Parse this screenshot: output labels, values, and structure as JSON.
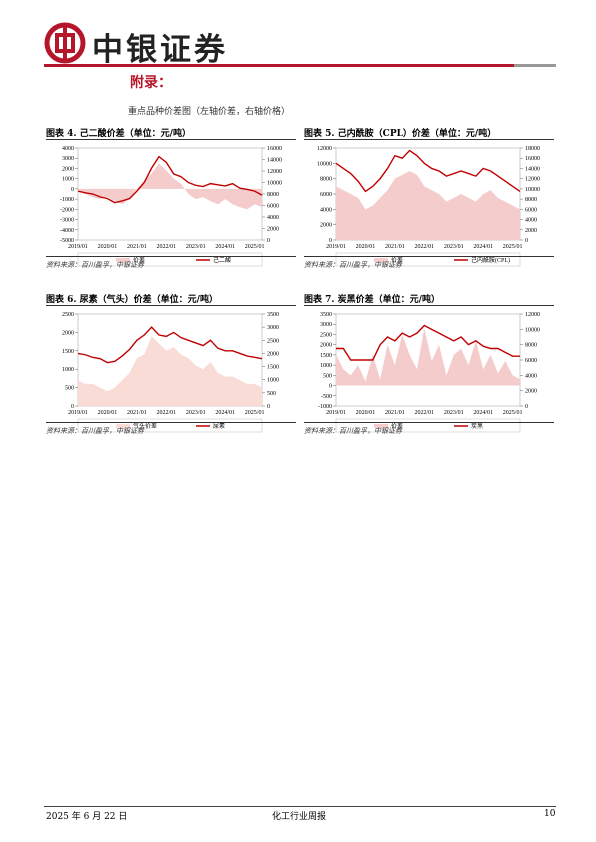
{
  "header": {
    "brand": "中银证券"
  },
  "section_title": "附录：",
  "subtitle": "重点品种价差图（左轴价差，右轴价格）",
  "chart_data": [
    {
      "type": "area-line",
      "title": "图表 4. 己二酸价差（单位：元/吨）",
      "source": "资料来源：百川盈孚，中银证券",
      "categories": [
        "2019/01",
        null,
        null,
        null,
        "2020/01",
        null,
        null,
        null,
        "2021/01",
        null,
        null,
        null,
        "2022/01",
        null,
        null,
        null,
        "2023/01",
        null,
        null,
        null,
        "2024/01",
        null,
        null,
        null,
        "2025/01",
        null
      ],
      "series": [
        {
          "name": "价差",
          "color": "#f4cccc",
          "values": [
            -300,
            -500,
            -800,
            -1000,
            -800,
            -1200,
            -1500,
            -1000,
            0,
            800,
            1500,
            2500,
            1800,
            1000,
            500,
            -500,
            -1000,
            -800,
            -1200,
            -1500,
            -1000,
            -1500,
            -1800,
            -2000,
            -1500,
            -1800
          ]
        },
        {
          "name": "己二酸",
          "color": "#c00000",
          "axis": "y2",
          "values": [
            8500,
            8200,
            8000,
            7500,
            7200,
            6500,
            6800,
            7200,
            8500,
            10000,
            12500,
            14500,
            13500,
            11500,
            11000,
            10000,
            9500,
            9300,
            9800,
            9600,
            9400,
            9800,
            9000,
            8800,
            8500,
            7800
          ]
        }
      ],
      "ylim": [
        -5000,
        4000
      ],
      "yticks": [
        -5000,
        -4000,
        -3000,
        -2000,
        -1000,
        0,
        1000,
        2000,
        3000,
        4000
      ],
      "y2lim": [
        0,
        16000
      ],
      "y2ticks": [
        0,
        2000,
        4000,
        6000,
        8000,
        10000,
        12000,
        14000,
        16000
      ]
    },
    {
      "type": "area-line",
      "title": "图表 5. 己内酰胺（CPL）价差（单位：元/吨）",
      "source": "资料来源：百川盈孚，中银证券",
      "categories": [
        "2019/01",
        null,
        null,
        null,
        "2020/01",
        null,
        null,
        null,
        "2021/01",
        null,
        null,
        null,
        "2022/01",
        null,
        null,
        null,
        "2023/01",
        null,
        null,
        null,
        "2024/01",
        null,
        null,
        null,
        "2025/01",
        null
      ],
      "series": [
        {
          "name": "价差",
          "color": "#f4cccc",
          "values": [
            7000,
            6500,
            6000,
            5500,
            4000,
            4500,
            5500,
            6500,
            8000,
            8500,
            9000,
            8500,
            7000,
            6500,
            6000,
            5000,
            5500,
            6000,
            5500,
            5000,
            6000,
            6500,
            5500,
            5000,
            4500,
            4000
          ]
        },
        {
          "name": "己内酰胺(CPL)",
          "color": "#c00000",
          "axis": "y2",
          "values": [
            15000,
            14000,
            13000,
            11500,
            9500,
            10500,
            12000,
            14000,
            16500,
            16000,
            17500,
            16500,
            15000,
            14000,
            13500,
            12500,
            13000,
            13500,
            13000,
            12500,
            14000,
            13500,
            12500,
            11500,
            10500,
            9500
          ]
        }
      ],
      "ylim": [
        0,
        12000
      ],
      "yticks": [
        0,
        2000,
        4000,
        6000,
        8000,
        10000,
        12000
      ],
      "y2lim": [
        0,
        18000
      ],
      "y2ticks": [
        0,
        2000,
        4000,
        6000,
        8000,
        10000,
        12000,
        14000,
        16000,
        18000
      ]
    },
    {
      "type": "area-line",
      "title": "图表 6. 尿素（气头）价差（单位：元/吨）",
      "source": "资料来源：百川盈孚，中银证券",
      "categories": [
        "2019/01",
        null,
        null,
        null,
        "2020/01",
        null,
        null,
        null,
        "2021/01",
        null,
        null,
        null,
        "2022/01",
        null,
        null,
        null,
        "2023/01",
        null,
        null,
        null,
        "2024/01",
        null,
        null,
        null,
        "2025/01",
        null
      ],
      "series": [
        {
          "name": "气头价差",
          "color": "#f9dcd6",
          "values": [
            700,
            600,
            600,
            500,
            400,
            500,
            700,
            900,
            1300,
            1400,
            1900,
            1700,
            1500,
            1600,
            1400,
            1300,
            1100,
            1000,
            1200,
            900,
            800,
            800,
            700,
            600,
            600,
            500
          ]
        },
        {
          "name": "尿素",
          "color": "#c00000",
          "axis": "y2",
          "values": [
            2000,
            1950,
            1850,
            1800,
            1650,
            1700,
            1900,
            2150,
            2500,
            2700,
            3000,
            2700,
            2650,
            2800,
            2600,
            2500,
            2400,
            2300,
            2500,
            2200,
            2100,
            2100,
            2000,
            1900,
            1850,
            1800
          ]
        }
      ],
      "ylim": [
        0,
        2500
      ],
      "yticks": [
        0,
        500,
        1000,
        1500,
        2000,
        2500
      ],
      "y2lim": [
        0,
        3500
      ],
      "y2ticks": [
        0,
        500,
        1000,
        1500,
        2000,
        2500,
        3000,
        3500
      ]
    },
    {
      "type": "area-line",
      "title": "图表 7. 炭黑价差（单位：元/吨）",
      "source": "资料来源：百川盈孚，中银证券",
      "categories": [
        "2019/01",
        null,
        null,
        null,
        "2020/01",
        null,
        null,
        null,
        "2021/01",
        null,
        null,
        null,
        "2022/01",
        null,
        null,
        null,
        "2023/01",
        null,
        null,
        null,
        "2024/01",
        null,
        null,
        null,
        "2025/01",
        null
      ],
      "series": [
        {
          "name": "价差",
          "color": "#f4cccc",
          "values": [
            1500,
            800,
            500,
            1000,
            200,
            1500,
            300,
            2000,
            1000,
            2500,
            1500,
            800,
            2800,
            1200,
            2000,
            500,
            1500,
            1800,
            1000,
            2200,
            800,
            1500,
            600,
            1200,
            500,
            300
          ]
        },
        {
          "name": "炭黑",
          "color": "#c00000",
          "axis": "y2",
          "values": [
            7500,
            7500,
            6000,
            6000,
            6000,
            6000,
            8000,
            9000,
            8500,
            9500,
            9000,
            9500,
            10500,
            10000,
            9500,
            9000,
            8500,
            9000,
            8000,
            8500,
            7800,
            7500,
            7500,
            7000,
            6500,
            6500
          ]
        }
      ],
      "ylim": [
        -1000,
        3500
      ],
      "yticks": [
        -1000,
        -500,
        0,
        500,
        1000,
        1500,
        2000,
        2500,
        3000,
        3500
      ],
      "y2lim": [
        0,
        12000
      ],
      "y2ticks": [
        0,
        2000,
        4000,
        6000,
        8000,
        10000,
        12000
      ]
    }
  ],
  "footer": {
    "date": "2025 年 6 月 22 日",
    "report": "化工行业周报",
    "page": "10"
  }
}
